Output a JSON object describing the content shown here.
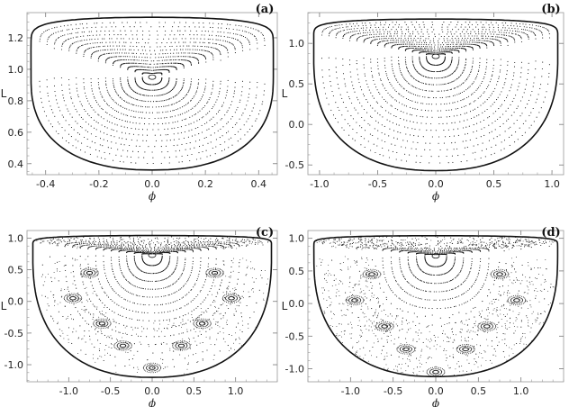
{
  "chart_data": [
    {
      "type": "scatter",
      "panel_label": "(a)",
      "xlabel": "ϕ",
      "ylabel": "L",
      "xlim": [
        -0.47,
        0.47
      ],
      "ylim": [
        0.33,
        1.36
      ],
      "xticks": [
        -0.4,
        -0.2,
        0.0,
        0.2,
        0.4
      ],
      "xtick_labels": [
        "-0.4",
        "-0.2",
        "0.0",
        "0.2",
        "0.4"
      ],
      "yticks": [
        0.4,
        0.6,
        0.8,
        1.0,
        1.2
      ],
      "ytick_labels": [
        "0.4",
        "0.6",
        "0.8",
        "1.0",
        "1.2"
      ],
      "center": [
        0.0,
        0.95
      ],
      "boundary": {
        "phi_max": 0.455,
        "L_min": 0.36,
        "L_max": 1.33
      },
      "n_rings": 15,
      "chaos": 0.0
    },
    {
      "type": "scatter",
      "panel_label": "(b)",
      "xlabel": "ϕ",
      "ylabel": "L",
      "xlim": [
        -1.1,
        1.1
      ],
      "ylim": [
        -0.62,
        1.38
      ],
      "xticks": [
        -1.0,
        -0.5,
        0.0,
        0.5,
        1.0
      ],
      "xtick_labels": [
        "-1.0",
        "-0.5",
        "0.0",
        "0.5",
        "1.0"
      ],
      "yticks": [
        -0.5,
        0.0,
        0.5,
        1.0
      ],
      "ytick_labels": [
        "-0.5",
        "0.0",
        "0.5",
        "1.0"
      ],
      "center": [
        0.0,
        0.84
      ],
      "boundary": {
        "phi_max": 1.05,
        "L_min": -0.57,
        "L_max": 1.3
      },
      "n_rings": 16,
      "chaos": 0.0
    },
    {
      "type": "scatter",
      "panel_label": "(c)",
      "xlabel": "ϕ",
      "ylabel": "L",
      "xlim": [
        -1.5,
        1.5
      ],
      "ylim": [
        -1.27,
        1.12
      ],
      "xticks": [
        -1.0,
        -0.5,
        0.0,
        0.5,
        1.0
      ],
      "xtick_labels": [
        "-1.0",
        "-0.5",
        "0.0",
        "0.5",
        "1.0"
      ],
      "yticks": [
        -1.0,
        -0.5,
        0.0,
        0.5,
        1.0
      ],
      "ytick_labels": [
        "-1.0",
        "-0.5",
        "0.0",
        "0.5",
        "1.0"
      ],
      "center": [
        0.0,
        0.73
      ],
      "boundary": {
        "phi_max": 1.43,
        "L_min": -1.2,
        "L_max": 1.04
      },
      "n_rings": 14,
      "chaos": 0.45
    },
    {
      "type": "scatter",
      "panel_label": "(d)",
      "xlabel": "ϕ",
      "ylabel": "L",
      "xlim": [
        -1.5,
        1.5
      ],
      "ylim": [
        -1.2,
        1.12
      ],
      "xticks": [
        -1.0,
        -0.5,
        0.0,
        0.5,
        1.0
      ],
      "xtick_labels": [
        "-1.0",
        "-0.5",
        "0.0",
        "0.5",
        "1.0"
      ],
      "yticks": [
        -1.0,
        -0.5,
        0.0,
        0.5,
        1.0
      ],
      "ytick_labels": [
        "-1.0",
        "-0.5",
        "0.0",
        "0.5",
        "1.0"
      ],
      "center": [
        0.0,
        0.73
      ],
      "boundary": {
        "phi_max": 1.43,
        "L_min": -1.12,
        "L_max": 1.04
      },
      "n_rings": 13,
      "chaos": 1.0
    }
  ]
}
